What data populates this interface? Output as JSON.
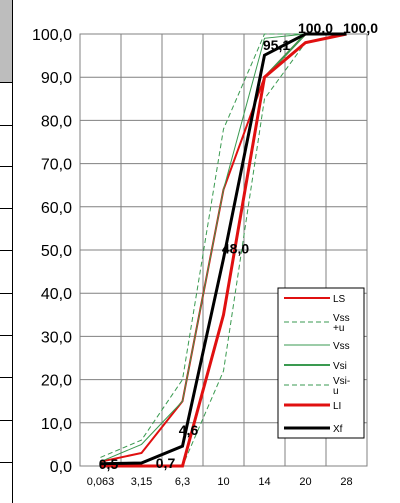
{
  "chart_data": {
    "type": "line",
    "categories": [
      "0,063",
      "3,15",
      "6,3",
      "10",
      "14",
      "20",
      "28"
    ],
    "y_ticks": [
      "0,0",
      "10,0",
      "20,0",
      "30,0",
      "40,0",
      "50,0",
      "60,0",
      "70,0",
      "80,0",
      "90,0",
      "100,0"
    ],
    "ylim": [
      0,
      100
    ],
    "grid": true,
    "legend_position": "right-inside",
    "series": [
      {
        "name": "LS",
        "color": "#e01010",
        "dash": "solid",
        "width": 2,
        "values": [
          1.0,
          3.0,
          15.0,
          64.0,
          90.0,
          100.0,
          100.0
        ]
      },
      {
        "name": "Vss +u",
        "color": "#3a9a50",
        "dash": "dashed",
        "width": 1,
        "values": [
          2.0,
          6.0,
          20.0,
          78.0,
          100.0,
          100.0,
          100.0
        ]
      },
      {
        "name": "Vss",
        "color": "#3a9a50",
        "dash": "solid",
        "width": 1,
        "values": [
          1.0,
          5.0,
          15.0,
          64.0,
          99.0,
          100.0,
          100.0
        ]
      },
      {
        "name": "Vsi",
        "color": "#3a9a50",
        "dash": "solid",
        "width": 2,
        "values": [
          0.0,
          0.0,
          0.0,
          35.0,
          90.0,
          100.0,
          100.0
        ]
      },
      {
        "name": "Vsi- u",
        "color": "#3a9a50",
        "dash": "dashed",
        "width": 1,
        "values": [
          0.0,
          0.0,
          0.0,
          22.0,
          85.0,
          98.0,
          100.0
        ]
      },
      {
        "name": "LI",
        "color": "#e01010",
        "dash": "solid",
        "width": 3,
        "values": [
          0.0,
          0.0,
          0.0,
          35.0,
          90.0,
          98.0,
          100.0
        ]
      },
      {
        "name": "Xf",
        "color": "#000000",
        "dash": "solid",
        "width": 3,
        "values": [
          0.5,
          0.7,
          4.6,
          48.0,
          95.1,
          100.0,
          100.0
        ]
      }
    ],
    "data_labels": [
      "0,5",
      "0,7",
      "4,6",
      "48,0",
      "95,1",
      "100,0",
      "100,0"
    ]
  }
}
